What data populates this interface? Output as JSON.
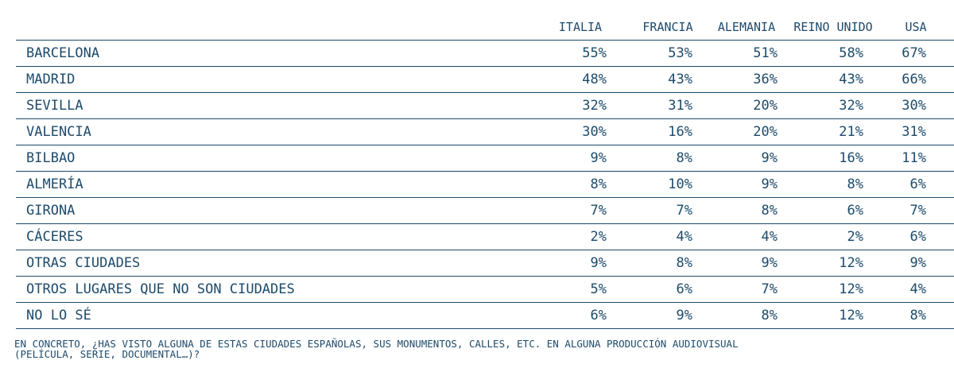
{
  "chart_data": {
    "type": "table",
    "columns": [
      "ITALIA",
      "FRANCIA",
      "ALEMANIA",
      "REINO UNIDO",
      "USA"
    ],
    "rows": [
      {
        "label": "BARCELONA",
        "values": [
          "55%",
          "53%",
          "51%",
          "58%",
          "67%"
        ]
      },
      {
        "label": "MADRID",
        "values": [
          "48%",
          "43%",
          "36%",
          "43%",
          "66%"
        ]
      },
      {
        "label": "SEVILLA",
        "values": [
          "32%",
          "31%",
          "20%",
          "32%",
          "30%"
        ]
      },
      {
        "label": "VALENCIA",
        "values": [
          "30%",
          "16%",
          "20%",
          "21%",
          "31%"
        ]
      },
      {
        "label": "BILBAO",
        "values": [
          "9%",
          "8%",
          "9%",
          "16%",
          "11%"
        ]
      },
      {
        "label": "ALMERÍA",
        "values": [
          "8%",
          "10%",
          "9%",
          "8%",
          "6%"
        ]
      },
      {
        "label": "GIRONA",
        "values": [
          "7%",
          "7%",
          "8%",
          "6%",
          "7%"
        ]
      },
      {
        "label": "CÁCERES",
        "values": [
          "2%",
          "4%",
          "4%",
          "2%",
          "6%"
        ]
      },
      {
        "label": "OTRAS CIUDADES",
        "values": [
          "9%",
          "8%",
          "9%",
          "12%",
          "9%"
        ]
      },
      {
        "label": "OTROS LUGARES QUE NO SON CIUDADES",
        "values": [
          "5%",
          "6%",
          "7%",
          "12%",
          "4%"
        ]
      },
      {
        "label": "NO LO SÉ",
        "values": [
          "6%",
          "9%",
          "8%",
          "12%",
          "8%"
        ]
      }
    ],
    "footnote_line1": "EN CONCRETO, ¿HAS VISTO ALGUNA DE ESTAS CIUDADES ESPAÑOLAS, SUS MONUMENTOS, CALLES, ETC. EN ALGUNA PRODUCCIÓN AUDIOVISUAL",
    "footnote_line2": "(PELÍCULA, SERIE, DOCUMENTAL…)?"
  },
  "colors": {
    "text": "#1d4a6b",
    "rule": "#1d4a6b",
    "background": "#ffffff"
  }
}
